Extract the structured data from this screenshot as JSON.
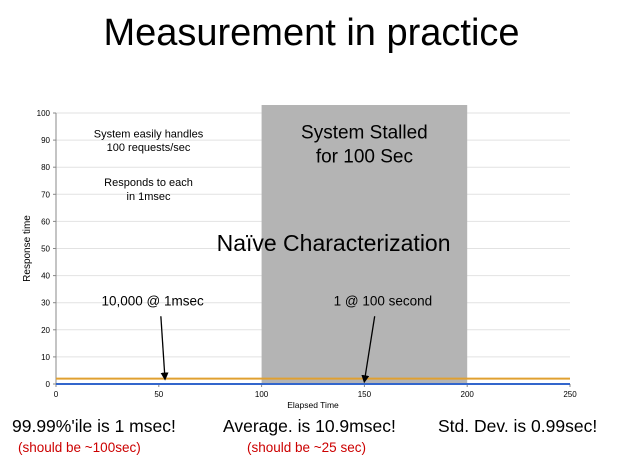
{
  "slide": {
    "title": "Measurement in practice"
  },
  "chart_data": {
    "type": "line",
    "xlabel": "Elapsed Time",
    "ylabel": "Response time",
    "xlim": [
      0,
      250
    ],
    "ylim": [
      0,
      100
    ],
    "x_ticks": [
      0,
      50,
      100,
      150,
      200,
      250
    ],
    "y_ticks": [
      0,
      10,
      20,
      30,
      40,
      50,
      60,
      70,
      80,
      90,
      100
    ],
    "grid": true,
    "shaded_region": {
      "x_start": 100,
      "x_end": 200,
      "color": "#b4b4b4"
    },
    "series": [
      {
        "values": [
          [
            0,
            2
          ],
          [
            250,
            2
          ]
        ],
        "color": "#e0a030"
      },
      {
        "values": [
          [
            0,
            0
          ],
          [
            250,
            0
          ]
        ],
        "color": "#3366cc"
      }
    ],
    "annotations": [
      {
        "lines": [
          "System easily handles",
          "100 requests/sec"
        ],
        "x": 45,
        "y": 91,
        "size": 11
      },
      {
        "lines": [
          "Responds to each",
          "in 1msec"
        ],
        "x": 45,
        "y": 73,
        "size": 11
      },
      {
        "lines": [
          "System Stalled",
          "for 100 Sec"
        ],
        "x": 150,
        "y": 90.5,
        "size": 19
      },
      {
        "lines": [
          "Naïve Characterization"
        ],
        "x": 135,
        "y": 49,
        "size": 23
      },
      {
        "lines": [
          "10,000 @ 1msec"
        ],
        "x": 47,
        "y": 29,
        "size": 13.5
      },
      {
        "lines": [
          "1 @ 100 second"
        ],
        "x": 159,
        "y": 29,
        "size": 13.5
      }
    ],
    "arrows": [
      {
        "from": [
          51,
          25
        ],
        "to": [
          53,
          2
        ]
      },
      {
        "from": [
          155,
          25
        ],
        "to": [
          150,
          1
        ]
      }
    ]
  },
  "bottom": {
    "stats": [
      {
        "text": "99.99%'ile is 1 msec!",
        "note": "(should be ~100sec)"
      },
      {
        "text": "Average. is 10.9msec!",
        "note": "(should be ~25 sec)"
      },
      {
        "text": "Std. Dev. is 0.99sec!",
        "note": ""
      }
    ]
  }
}
